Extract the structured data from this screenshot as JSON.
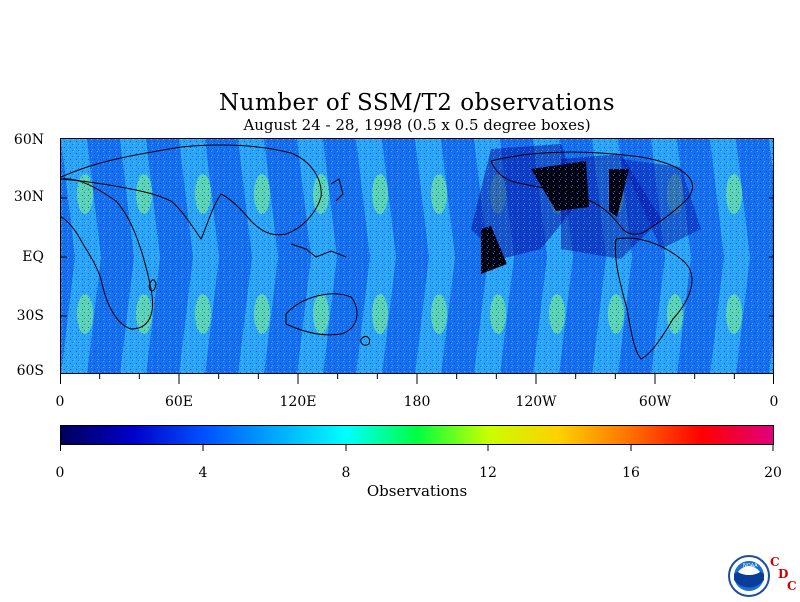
{
  "title": "Number of SSM/T2 observations",
  "subtitle": "August 24 - 28, 1998 (0.5 x 0.5 degree boxes)",
  "map": {
    "projection": "equirectangular",
    "lon_range": [
      0,
      360
    ],
    "lat_range": [
      -60,
      60
    ],
    "lat_labels": [
      "60N",
      "30N",
      "EQ",
      "30S",
      "60S"
    ],
    "lon_labels": [
      "0",
      "60E",
      "120E",
      "180",
      "120W",
      "60W",
      "0"
    ]
  },
  "colorbar": {
    "title": "Observations",
    "min": 0,
    "max": 20,
    "tick_labels": [
      "0",
      "4",
      "8",
      "12",
      "16",
      "20"
    ],
    "colors": [
      "#00005a",
      "#0000c8",
      "#0050ff",
      "#00a8ff",
      "#00ffff",
      "#00ff40",
      "#c8ff00",
      "#ffd000",
      "#ff7000",
      "#ff0000",
      "#e0007a"
    ]
  },
  "logo": {
    "name": "NOAA",
    "letters": [
      "C",
      "D",
      "C"
    ]
  }
}
